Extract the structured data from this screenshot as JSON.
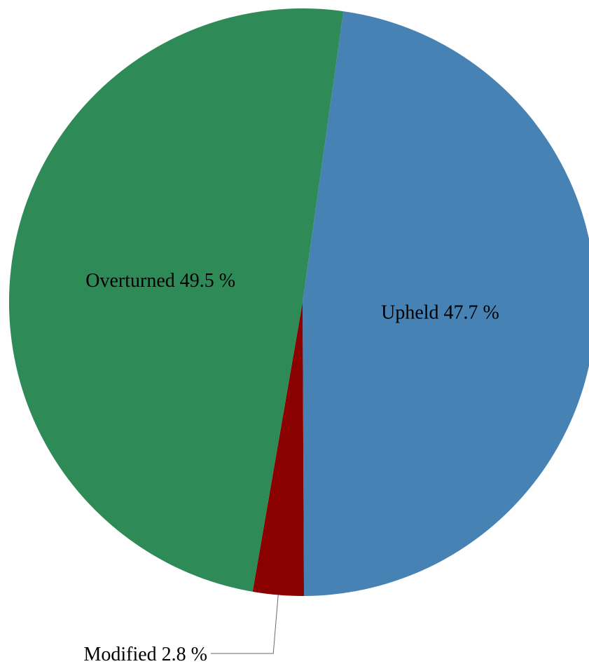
{
  "chart_data": {
    "type": "pie",
    "title": "",
    "slices": [
      {
        "label": "Upheld",
        "value": 47.7,
        "display": "Upheld 47.7 %",
        "color": "#4682b4"
      },
      {
        "label": "Modified",
        "value": 2.8,
        "display": "Modified 2.8 %",
        "color": "#8b0000"
      },
      {
        "label": "Overturned",
        "value": 49.5,
        "display": "Overturned 49.5 %",
        "color": "#2e8b57"
      }
    ],
    "start_angle_deg": 8,
    "direction": "clockwise",
    "legend": "none"
  }
}
